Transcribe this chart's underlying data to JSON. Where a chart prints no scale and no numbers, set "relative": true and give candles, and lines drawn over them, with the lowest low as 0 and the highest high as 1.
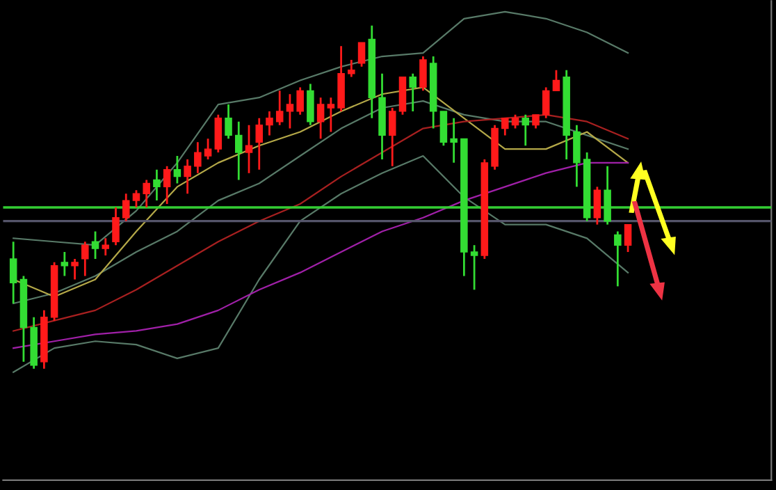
{
  "chart_data": {
    "type": "candlestick",
    "relative": true,
    "categories": [
      null,
      null,
      null,
      null,
      null,
      null,
      null,
      null,
      null,
      null,
      null,
      null,
      null,
      null,
      null,
      null,
      null,
      null,
      null,
      null,
      null,
      null,
      null,
      null,
      null,
      null,
      null,
      null,
      null,
      null,
      null,
      null,
      null,
      null,
      null,
      null,
      null,
      null,
      null,
      null,
      null,
      null,
      null,
      null,
      null,
      null,
      null,
      null,
      null,
      null,
      null,
      null,
      null,
      null,
      null,
      null,
      null,
      null,
      null,
      null,
      null
    ],
    "ohlc": [
      [
        0.32,
        0.37,
        0.19,
        0.25
      ],
      [
        0.26,
        0.27,
        0.02,
        0.12
      ],
      [
        0.12,
        0.15,
        0.0,
        0.01
      ],
      [
        0.02,
        0.17,
        0.0,
        0.15
      ],
      [
        0.15,
        0.31,
        0.14,
        0.3
      ],
      [
        0.31,
        0.34,
        0.27,
        0.3
      ],
      [
        0.3,
        0.32,
        0.26,
        0.31
      ],
      [
        0.32,
        0.37,
        0.27,
        0.36
      ],
      [
        0.37,
        0.4,
        0.32,
        0.35
      ],
      [
        0.35,
        0.38,
        0.33,
        0.36
      ],
      [
        0.37,
        0.47,
        0.36,
        0.44
      ],
      [
        0.44,
        0.51,
        0.43,
        0.49
      ],
      [
        0.49,
        0.52,
        0.47,
        0.51
      ],
      [
        0.51,
        0.55,
        0.47,
        0.54
      ],
      [
        0.55,
        0.58,
        0.49,
        0.53
      ],
      [
        0.53,
        0.59,
        0.48,
        0.58
      ],
      [
        0.58,
        0.62,
        0.54,
        0.56
      ],
      [
        0.56,
        0.61,
        0.51,
        0.59
      ],
      [
        0.59,
        0.66,
        0.57,
        0.63
      ],
      [
        0.62,
        0.67,
        0.61,
        0.64
      ],
      [
        0.64,
        0.74,
        0.63,
        0.73
      ],
      [
        0.73,
        0.77,
        0.67,
        0.68
      ],
      [
        0.68,
        0.72,
        0.55,
        0.63
      ],
      [
        0.63,
        0.71,
        0.57,
        0.65
      ],
      [
        0.66,
        0.73,
        0.58,
        0.71
      ],
      [
        0.71,
        0.75,
        0.68,
        0.73
      ],
      [
        0.72,
        0.81,
        0.71,
        0.75
      ],
      [
        0.75,
        0.8,
        0.7,
        0.77
      ],
      [
        0.75,
        0.82,
        0.74,
        0.81
      ],
      [
        0.81,
        0.83,
        0.71,
        0.72
      ],
      [
        0.72,
        0.79,
        0.67,
        0.77
      ],
      [
        0.76,
        0.79,
        0.69,
        0.77
      ],
      [
        0.76,
        0.94,
        0.75,
        0.86
      ],
      [
        0.86,
        0.9,
        0.85,
        0.87
      ],
      [
        0.89,
        0.95,
        0.88,
        0.95
      ],
      [
        0.96,
        1.0,
        0.73,
        0.79
      ],
      [
        0.79,
        0.86,
        0.61,
        0.68
      ],
      [
        0.68,
        0.76,
        0.59,
        0.75
      ],
      [
        0.75,
        0.85,
        0.74,
        0.85
      ],
      [
        0.85,
        0.86,
        0.75,
        0.82
      ],
      [
        0.82,
        0.91,
        0.81,
        0.9
      ],
      [
        0.89,
        0.91,
        0.7,
        0.75
      ],
      [
        0.75,
        0.75,
        0.65,
        0.66
      ],
      [
        0.67,
        0.73,
        0.6,
        0.66
      ],
      [
        0.67,
        0.67,
        0.27,
        0.34
      ],
      [
        0.34,
        0.36,
        0.23,
        0.33
      ],
      [
        0.33,
        0.61,
        0.32,
        0.6
      ],
      [
        0.59,
        0.71,
        0.58,
        0.7
      ],
      [
        0.7,
        0.73,
        0.68,
        0.73
      ],
      [
        0.71,
        0.74,
        0.7,
        0.73
      ],
      [
        0.73,
        0.74,
        0.65,
        0.71
      ],
      [
        0.71,
        0.74,
        0.7,
        0.74
      ],
      [
        0.74,
        0.82,
        0.73,
        0.81
      ],
      [
        0.81,
        0.87,
        0.81,
        0.84
      ],
      [
        0.85,
        0.87,
        0.61,
        0.68
      ],
      [
        0.69,
        0.71,
        0.53,
        0.6
      ],
      [
        0.61,
        0.63,
        0.43,
        0.44
      ],
      [
        0.44,
        0.53,
        0.42,
        0.52
      ],
      [
        0.52,
        0.59,
        0.42,
        0.43
      ],
      [
        0.39,
        0.4,
        0.24,
        0.36
      ],
      [
        0.36,
        0.42,
        0.34,
        0.42
      ]
    ],
    "colors": [
      "#33dd33",
      "#33dd33",
      "#33dd33",
      "#ff1a1a",
      "#ff1a1a",
      "#33dd33",
      "#ff1a1a",
      "#ff1a1a",
      "#33dd33",
      "#ff1a1a",
      "#ff1a1a",
      "#ff1a1a",
      "#ff1a1a",
      "#ff1a1a",
      "#33dd33",
      "#ff1a1a",
      "#33dd33",
      "#ff1a1a",
      "#ff1a1a",
      "#ff1a1a",
      "#ff1a1a",
      "#33dd33",
      "#33dd33",
      "#ff1a1a",
      "#ff1a1a",
      "#ff1a1a",
      "#ff1a1a",
      "#ff1a1a",
      "#ff1a1a",
      "#33dd33",
      "#ff1a1a",
      "#ff1a1a",
      "#ff1a1a",
      "#ff1a1a",
      "#ff1a1a",
      "#33dd33",
      "#33dd33",
      "#ff1a1a",
      "#ff1a1a",
      "#33dd33",
      "#ff1a1a",
      "#33dd33",
      "#33dd33",
      "#33dd33",
      "#33dd33",
      "#33dd33",
      "#ff1a1a",
      "#ff1a1a",
      "#ff1a1a",
      "#ff1a1a",
      "#33dd33",
      "#ff1a1a",
      "#ff1a1a",
      "#ff1a1a",
      "#33dd33",
      "#33dd33",
      "#33dd33",
      "#ff1a1a",
      "#33dd33",
      "#33dd33",
      "#ff1a1a"
    ],
    "series": [
      {
        "type": "line",
        "color": "#587a68",
        "values": [
          0.38,
          null,
          null,
          null,
          0.37,
          null,
          null,
          null,
          0.36,
          null,
          null,
          null,
          0.46,
          null,
          null,
          null,
          0.6,
          null,
          null,
          null,
          0.77,
          null,
          null,
          null,
          0.79,
          null,
          null,
          null,
          0.84,
          null,
          null,
          null,
          0.88,
          null,
          null,
          null,
          0.91,
          null,
          null,
          null,
          0.92,
          null,
          null,
          null,
          1.02,
          null,
          null,
          null,
          1.04,
          null,
          null,
          null,
          1.02,
          null,
          null,
          null,
          0.98,
          null,
          null,
          null,
          0.92
        ]
      },
      {
        "type": "line",
        "color": "#587a68",
        "values": [
          0.19,
          null,
          null,
          null,
          0.22,
          null,
          null,
          null,
          0.27,
          null,
          null,
          null,
          0.34,
          null,
          null,
          null,
          0.4,
          null,
          null,
          null,
          0.49,
          null,
          null,
          null,
          0.54,
          null,
          null,
          null,
          0.62,
          null,
          null,
          null,
          0.7,
          null,
          null,
          null,
          0.76,
          null,
          null,
          null,
          0.78,
          null,
          null,
          null,
          0.74,
          null,
          null,
          null,
          0.72,
          null,
          null,
          null,
          0.72,
          null,
          null,
          null,
          0.68,
          null,
          null,
          null,
          0.64
        ]
      },
      {
        "type": "line",
        "color": "#587a68",
        "values": [
          -0.01,
          null,
          null,
          null,
          0.06,
          null,
          null,
          null,
          0.08,
          null,
          null,
          null,
          0.07,
          null,
          null,
          null,
          0.03,
          null,
          null,
          null,
          0.06,
          null,
          null,
          null,
          0.26,
          null,
          null,
          null,
          0.43,
          null,
          null,
          null,
          0.51,
          null,
          null,
          null,
          0.57,
          null,
          null,
          null,
          0.62,
          null,
          null,
          null,
          0.5,
          null,
          null,
          null,
          0.42,
          null,
          null,
          null,
          0.42,
          null,
          null,
          null,
          0.38,
          null,
          null,
          null,
          0.28
        ]
      },
      {
        "type": "line",
        "color": "#b4a848",
        "values": [
          0.26,
          null,
          null,
          null,
          0.21,
          null,
          null,
          null,
          0.26,
          null,
          null,
          null,
          0.4,
          null,
          null,
          null,
          0.53,
          null,
          null,
          null,
          0.6,
          null,
          null,
          null,
          0.65,
          null,
          null,
          null,
          0.69,
          null,
          null,
          null,
          0.75,
          null,
          null,
          null,
          0.8,
          null,
          null,
          null,
          0.82,
          null,
          null,
          null,
          0.73,
          null,
          null,
          null,
          0.64,
          null,
          null,
          null,
          0.64,
          null,
          null,
          null,
          0.69,
          null,
          null,
          null,
          0.6
        ]
      },
      {
        "type": "line",
        "color": "#a82020",
        "values": [
          0.11,
          null,
          null,
          null,
          0.14,
          null,
          null,
          null,
          0.17,
          null,
          null,
          null,
          0.23,
          null,
          null,
          null,
          0.3,
          null,
          null,
          null,
          0.37,
          null,
          null,
          null,
          0.43,
          null,
          null,
          null,
          0.48,
          null,
          null,
          null,
          0.56,
          null,
          null,
          null,
          0.63,
          null,
          null,
          null,
          0.7,
          null,
          null,
          null,
          0.72,
          null,
          null,
          null,
          0.73,
          null,
          null,
          null,
          0.74,
          null,
          null,
          null,
          0.72,
          null,
          null,
          null,
          0.67
        ]
      },
      {
        "type": "line",
        "color": "#a020a8",
        "values": [
          0.06,
          null,
          null,
          null,
          0.08,
          null,
          null,
          null,
          0.1,
          null,
          null,
          null,
          0.11,
          null,
          null,
          null,
          0.13,
          null,
          null,
          null,
          0.17,
          null,
          null,
          null,
          0.23,
          null,
          null,
          null,
          0.28,
          null,
          null,
          null,
          0.34,
          null,
          null,
          null,
          0.4,
          null,
          null,
          null,
          0.44,
          null,
          null,
          null,
          0.49,
          null,
          null,
          null,
          0.53,
          null,
          null,
          null,
          0.57,
          null,
          null,
          null,
          0.6,
          null,
          null,
          null,
          0.6
        ]
      }
    ],
    "ref_lines": [
      {
        "axis": "y",
        "value": 0.47,
        "color": "#33cc33"
      },
      {
        "axis": "y",
        "value": 0.43,
        "color": "#55556a"
      }
    ]
  }
}
